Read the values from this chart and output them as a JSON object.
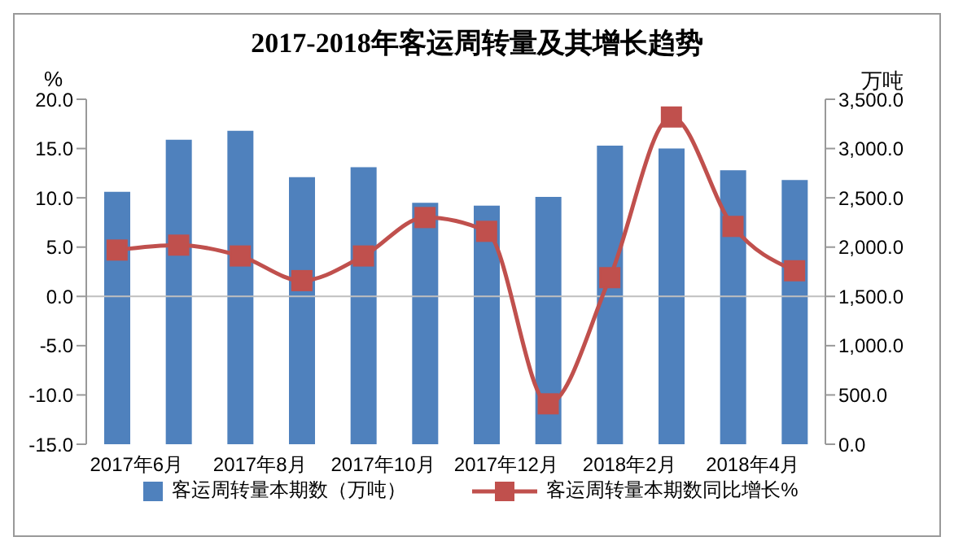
{
  "chart_data": {
    "type": "bar",
    "title": "2017-2018年客运周转量及其增长趋势",
    "ylabel": "%",
    "y2label": "万吨",
    "categories": [
      "2017年6月",
      null,
      "2017年8月",
      null,
      "2017年10月",
      null,
      "2017年12月",
      null,
      "2018年2月",
      null,
      "2018年4月",
      null
    ],
    "series": [
      {
        "name": "客运周转量本期数（万吨）",
        "axis": "y2",
        "color": "#4f81bd",
        "values": [
          2560,
          3090,
          3180,
          2710,
          2810,
          2450,
          2420,
          2510,
          3030,
          3000,
          2780,
          2680
        ]
      },
      {
        "name": "客运周转量本期数同比增长%",
        "type": "line",
        "axis": "y",
        "color": "#c0504d",
        "values": [
          4.7,
          5.2,
          4.1,
          1.6,
          4.1,
          8.0,
          6.6,
          -10.9,
          1.9,
          18.2,
          7.1,
          2.6
        ]
      }
    ],
    "ylim": [
      -15,
      20
    ],
    "yticks": [
      {
        "value": -15,
        "label": "-15.0"
      },
      {
        "value": -10,
        "label": "-10.0"
      },
      {
        "value": -5,
        "label": "-5.0"
      },
      {
        "value": 0,
        "label": "0.0"
      },
      {
        "value": 5,
        "label": "5.0"
      },
      {
        "value": 10,
        "label": "10.0"
      },
      {
        "value": 15,
        "label": "15.0"
      },
      {
        "value": 20,
        "label": "20.0"
      }
    ],
    "y2lim": [
      0,
      3500
    ],
    "y2ticks": [
      {
        "value": 0,
        "label": "0.0"
      },
      {
        "value": 500,
        "label": "500.0"
      },
      {
        "value": 1000,
        "label": "1,000.0"
      },
      {
        "value": 1500,
        "label": "1,500.0"
      },
      {
        "value": 2000,
        "label": "2,000.0"
      },
      {
        "value": 2500,
        "label": "2,500.0"
      },
      {
        "value": 3000,
        "label": "3,000.0"
      },
      {
        "value": 3500,
        "label": "3,500.0"
      }
    ],
    "ref_lines": [
      {
        "axis": "y",
        "value": 0,
        "color": "#bfbfbf"
      }
    ],
    "marker": "square",
    "legend": "bottom"
  }
}
